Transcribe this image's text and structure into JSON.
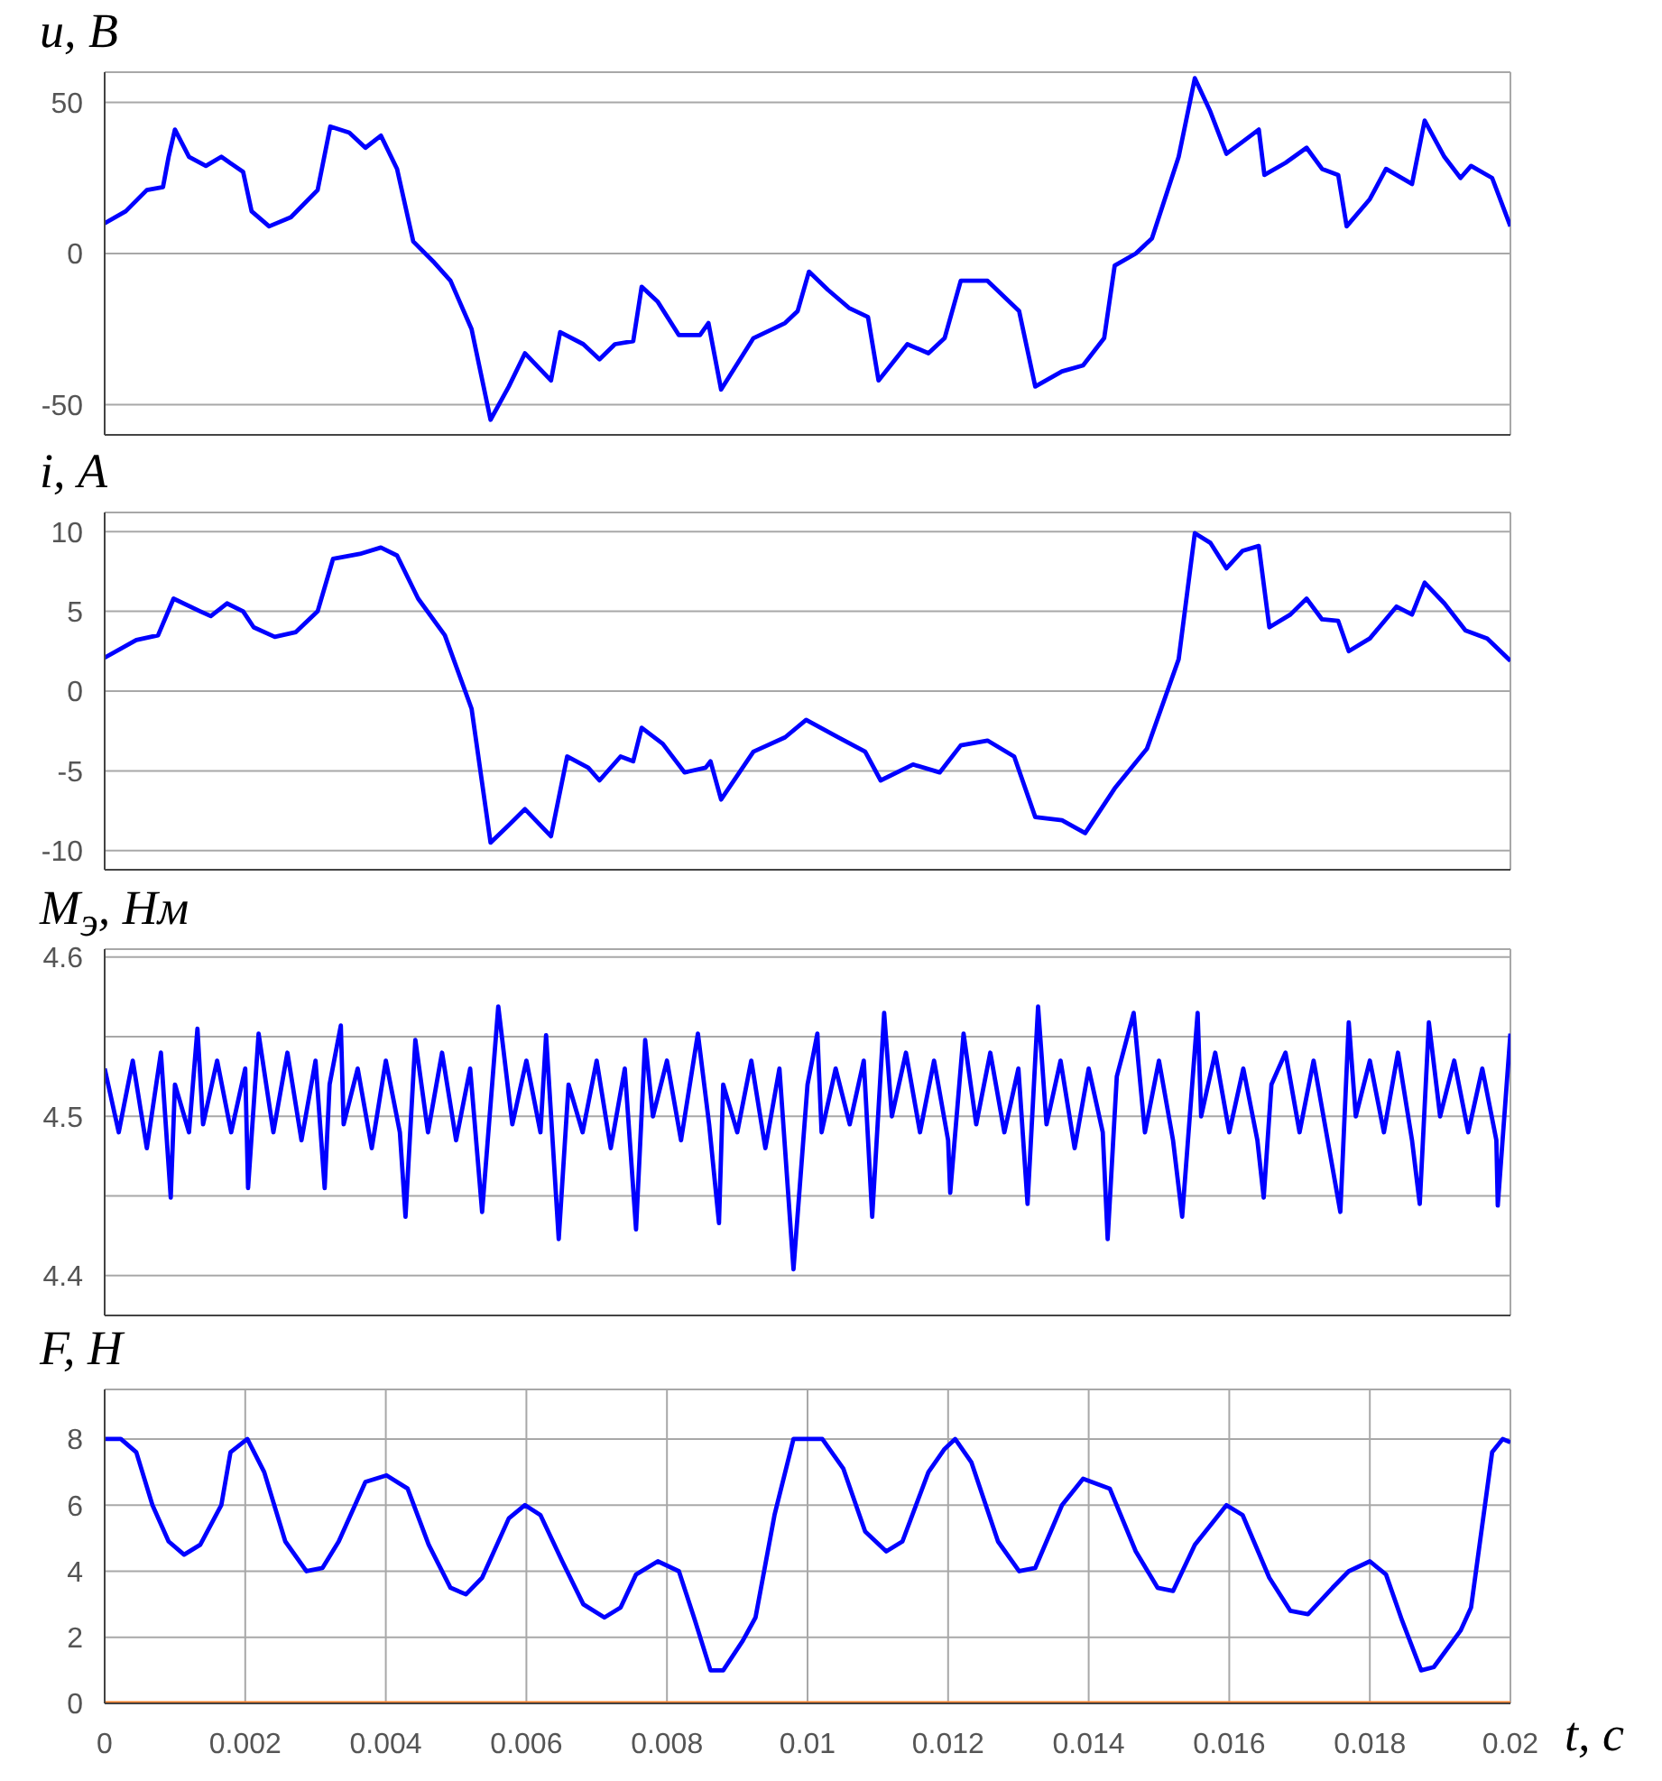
{
  "chart_data": [
    {
      "type": "line",
      "ylabel": "u, В",
      "xlim": [
        0,
        0.02
      ],
      "xticks": [
        0,
        0.002,
        0.004,
        0.006,
        0.008,
        0.01,
        0.012,
        0.014,
        0.016,
        0.018,
        0.02
      ],
      "ylim": [
        -60,
        60
      ],
      "yticks": [
        -50,
        0,
        50
      ],
      "grid": true,
      "tick_labels": "y",
      "series": [
        {
          "color": "#0000ff",
          "x": [
            0,
            0.0003,
            0.0006,
            0.00083,
            0.00091,
            0.001,
            0.0012,
            0.00144,
            0.00166,
            0.00197,
            0.00209,
            0.00234,
            0.00265,
            0.00303,
            0.00321,
            0.00348,
            0.00371,
            0.00393,
            0.00416,
            0.00439,
            0.00469,
            0.00492,
            0.00522,
            0.00549,
            0.00575,
            0.00598,
            0.00635,
            0.00648,
            0.00681,
            0.00704,
            0.00726,
            0.00752,
            0.00764,
            0.00787,
            0.00817,
            0.00847,
            0.00859,
            0.00877,
            0.00923,
            0.00968,
            0.00986,
            0.01002,
            0.01029,
            0.01059,
            0.01086,
            0.01101,
            0.01142,
            0.01172,
            0.01195,
            0.01218,
            0.01256,
            0.01301,
            0.01324,
            0.01362,
            0.01392,
            0.01422,
            0.01437,
            0.01467,
            0.0149,
            0.01528,
            0.01551,
            0.01573,
            0.01596,
            0.01619,
            0.01642,
            0.0165,
            0.0168,
            0.0171,
            0.01732,
            0.01755,
            0.01767,
            0.018,
            0.01823,
            0.0186,
            0.01878,
            0.01906,
            0.01929,
            0.01944,
            0.01974,
            0.02
          ],
          "values": [
            10,
            14,
            21,
            22,
            32,
            41,
            32,
            29,
            32,
            27,
            14,
            9,
            12,
            21,
            42,
            40,
            35,
            39,
            28,
            4,
            -3,
            -9,
            -25,
            -55,
            -44,
            -33,
            -42,
            -26,
            -30,
            -35,
            -30,
            -29,
            -11,
            -16,
            -27,
            -27,
            -23,
            -45,
            -28,
            -23,
            -19,
            -6,
            -12,
            -18,
            -21,
            -42,
            -30,
            -33,
            -28,
            -9,
            -9,
            -19,
            -44,
            -39,
            -37,
            -28,
            -4,
            0,
            5,
            32,
            58,
            47,
            33,
            37,
            41,
            26,
            30,
            35,
            28,
            26,
            9,
            18,
            28,
            23,
            44,
            32,
            25,
            29,
            25,
            9
          ]
        }
      ]
    },
    {
      "type": "line",
      "ylabel": "i, А",
      "xlim": [
        0,
        0.02
      ],
      "xticks": [
        0,
        0.002,
        0.004,
        0.006,
        0.008,
        0.01,
        0.012,
        0.014,
        0.016,
        0.018,
        0.02
      ],
      "ylim": [
        -11.2,
        11.2
      ],
      "yticks": [
        -10,
        -5,
        0,
        5,
        10
      ],
      "grid": true,
      "tick_labels": "y",
      "series": [
        {
          "color": "#0000ff",
          "x": [
            0,
            0.00045,
            0.00076,
            0.00098,
            0.00136,
            0.00151,
            0.00174,
            0.00197,
            0.00212,
            0.00242,
            0.00272,
            0.00303,
            0.00325,
            0.00363,
            0.00393,
            0.00416,
            0.00446,
            0.00484,
            0.00522,
            0.00549,
            0.00575,
            0.00598,
            0.00635,
            0.00658,
            0.00688,
            0.00704,
            0.00734,
            0.00752,
            0.00764,
            0.00794,
            0.00825,
            0.00855,
            0.00862,
            0.00877,
            0.00923,
            0.00968,
            0.00998,
            0.01044,
            0.01082,
            0.01104,
            0.0115,
            0.01188,
            0.01218,
            0.01256,
            0.01294,
            0.01324,
            0.01362,
            0.01395,
            0.01437,
            0.01483,
            0.01528,
            0.01551,
            0.01573,
            0.01596,
            0.01619,
            0.01642,
            0.01657,
            0.01687,
            0.0171,
            0.01732,
            0.01755,
            0.0177,
            0.018,
            0.01838,
            0.0186,
            0.01878,
            0.01906,
            0.01936,
            0.01967,
            0.02
          ],
          "values": [
            2.1,
            3.2,
            3.5,
            5.8,
            5.0,
            4.7,
            5.5,
            5.0,
            4.0,
            3.4,
            3.7,
            5.0,
            8.3,
            8.6,
            9.0,
            8.5,
            5.8,
            3.5,
            -1.1,
            -9.5,
            -8.4,
            -7.4,
            -9.1,
            -4.1,
            -4.8,
            -5.6,
            -4.1,
            -4.4,
            -2.3,
            -3.3,
            -5.1,
            -4.8,
            -4.4,
            -6.8,
            -3.8,
            -2.9,
            -1.8,
            -2.9,
            -3.8,
            -5.6,
            -4.6,
            -5.1,
            -3.4,
            -3.1,
            -4.1,
            -7.9,
            -8.1,
            -8.9,
            -6.1,
            -3.6,
            2.0,
            9.9,
            9.3,
            7.7,
            8.8,
            9.1,
            4.0,
            4.8,
            5.8,
            4.5,
            4.4,
            2.5,
            3.3,
            5.3,
            4.8,
            6.8,
            5.5,
            3.8,
            3.3,
            1.9
          ]
        }
      ]
    },
    {
      "type": "line",
      "ylabel": "M$_{э}$, Нм",
      "xlim": [
        0,
        0.02
      ],
      "xticks": [
        0,
        0.002,
        0.004,
        0.006,
        0.008,
        0.01,
        0.012,
        0.014,
        0.016,
        0.018,
        0.02
      ],
      "ylim": [
        4.375,
        4.605
      ],
      "yticks": [
        4.4,
        {
          "value": 4.45,
          "label": null
        },
        4.5,
        {
          "value": 4.55,
          "label": null
        },
        4.6
      ],
      "grid": true,
      "tick_labels": "y",
      "series": [
        {
          "color": "#0000ff",
          "x": [
            0,
            0.0002,
            0.0004,
            0.0006,
            0.0008,
            0.00094,
            0.001,
            0.0012,
            0.00132,
            0.0014,
            0.0016,
            0.0018,
            0.002,
            0.00204,
            0.00219,
            0.0024,
            0.0026,
            0.0028,
            0.003,
            0.00313,
            0.0032,
            0.00336,
            0.0034,
            0.0036,
            0.0038,
            0.004,
            0.0042,
            0.00428,
            0.00442,
            0.0046,
            0.0048,
            0.005,
            0.0052,
            0.00537,
            0.0056,
            0.0058,
            0.006,
            0.0062,
            0.00628,
            0.00646,
            0.0066,
            0.0068,
            0.007,
            0.0072,
            0.0074,
            0.00756,
            0.00769,
            0.0078,
            0.008,
            0.0082,
            0.00844,
            0.0086,
            0.00874,
            0.0088,
            0.009,
            0.0092,
            0.0094,
            0.0096,
            0.0098,
            0.01,
            0.01014,
            0.0102,
            0.0104,
            0.0106,
            0.0108,
            0.01092,
            0.01109,
            0.0112,
            0.0114,
            0.0116,
            0.0118,
            0.012,
            0.01203,
            0.01222,
            0.0124,
            0.0126,
            0.0128,
            0.013,
            0.01313,
            0.01328,
            0.0134,
            0.0136,
            0.0138,
            0.014,
            0.0142,
            0.01427,
            0.0144,
            0.01464,
            0.0148,
            0.015,
            0.0152,
            0.01533,
            0.01555,
            0.0156,
            0.0158,
            0.016,
            0.0162,
            0.0164,
            0.01649,
            0.0166,
            0.0168,
            0.017,
            0.0172,
            0.0174,
            0.01758,
            0.0177,
            0.0178,
            0.018,
            0.0182,
            0.0184,
            0.0186,
            0.01871,
            0.01884,
            0.019,
            0.0192,
            0.0194,
            0.0196,
            0.0198,
            0.01982,
            0.02
          ],
          "values": [
            4.53,
            4.49,
            4.535,
            4.48,
            4.54,
            4.449,
            4.52,
            4.49,
            4.555,
            4.495,
            4.535,
            4.49,
            4.53,
            4.455,
            4.552,
            4.49,
            4.54,
            4.485,
            4.535,
            4.455,
            4.52,
            4.557,
            4.495,
            4.53,
            4.48,
            4.535,
            4.49,
            4.437,
            4.548,
            4.49,
            4.54,
            4.485,
            4.53,
            4.44,
            4.569,
            4.495,
            4.535,
            4.49,
            4.551,
            4.423,
            4.52,
            4.49,
            4.535,
            4.48,
            4.53,
            4.429,
            4.548,
            4.5,
            4.535,
            4.485,
            4.552,
            4.495,
            4.433,
            4.52,
            4.49,
            4.535,
            4.48,
            4.53,
            4.404,
            4.52,
            4.552,
            4.49,
            4.53,
            4.495,
            4.535,
            4.437,
            4.565,
            4.5,
            4.54,
            4.49,
            4.535,
            4.485,
            4.452,
            4.552,
            4.495,
            4.54,
            4.49,
            4.53,
            4.445,
            4.569,
            4.495,
            4.535,
            4.48,
            4.53,
            4.49,
            4.423,
            4.525,
            4.565,
            4.49,
            4.535,
            4.485,
            4.437,
            4.565,
            4.5,
            4.54,
            4.49,
            4.53,
            4.485,
            4.449,
            4.52,
            4.54,
            4.49,
            4.535,
            4.485,
            4.44,
            4.559,
            4.5,
            4.535,
            4.49,
            4.54,
            4.485,
            4.445,
            4.559,
            4.5,
            4.535,
            4.49,
            4.53,
            4.485,
            4.444,
            4.552
          ]
        }
      ]
    },
    {
      "type": "line",
      "ylabel": "F, Н",
      "xlabel": "t, с",
      "xlim": [
        0,
        0.02
      ],
      "xticks": [
        0,
        0.002,
        0.004,
        0.006,
        0.008,
        0.01,
        0.012,
        0.014,
        0.016,
        0.018,
        0.02
      ],
      "ylim": [
        0,
        9.5
      ],
      "yticks": [
        0,
        2,
        4,
        6,
        8
      ],
      "grid": true,
      "series": [
        {
          "color": "#0000ff",
          "x": [
            0,
            0.00023,
            0.00045,
            0.00068,
            0.00091,
            0.00113,
            0.00136,
            0.00166,
            0.00179,
            0.00203,
            0.00227,
            0.00257,
            0.00287,
            0.0031,
            0.00333,
            0.00371,
            0.00401,
            0.00431,
            0.00461,
            0.00492,
            0.00514,
            0.00537,
            0.00575,
            0.00598,
            0.0062,
            0.00651,
            0.00681,
            0.00711,
            0.00734,
            0.00756,
            0.00787,
            0.00817,
            0.0084,
            0.00862,
            0.0088,
            0.00908,
            0.00926,
            0.00953,
            0.0098,
            0.01021,
            0.01051,
            0.01082,
            0.01112,
            0.01135,
            0.01172,
            0.01195,
            0.0121,
            0.01233,
            0.01271,
            0.01301,
            0.01324,
            0.01362,
            0.01392,
            0.0143,
            0.01467,
            0.01498,
            0.0152,
            0.01551,
            0.01596,
            0.01619,
            0.01657,
            0.01687,
            0.01712,
            0.01747,
            0.0177,
            0.018,
            0.01823,
            0.01846,
            0.01873,
            0.01891,
            0.01929,
            0.01944,
            0.01974,
            0.01989,
            0.02
          ],
          "values": [
            8.0,
            8.0,
            7.6,
            6.0,
            4.9,
            4.5,
            4.8,
            6.0,
            7.6,
            8.0,
            7.0,
            4.9,
            4.0,
            4.1,
            4.9,
            6.7,
            6.9,
            6.5,
            4.8,
            3.5,
            3.3,
            3.8,
            5.6,
            6.0,
            5.7,
            4.3,
            3.0,
            2.6,
            2.9,
            3.9,
            4.3,
            4.0,
            2.5,
            1.0,
            1.0,
            1.9,
            2.6,
            5.7,
            8.0,
            8.0,
            7.1,
            5.2,
            4.6,
            4.9,
            7.0,
            7.7,
            8.0,
            7.3,
            4.9,
            4.0,
            4.1,
            6.0,
            6.8,
            6.5,
            4.6,
            3.5,
            3.4,
            4.8,
            6.0,
            5.7,
            3.8,
            2.8,
            2.7,
            3.5,
            4.0,
            4.3,
            3.9,
            2.5,
            1.0,
            1.1,
            2.2,
            2.9,
            7.6,
            8.0,
            7.9
          ]
        },
        {
          "color": "#ff7f27",
          "x": [
            0,
            0.02
          ],
          "values": [
            0,
            0
          ]
        }
      ]
    }
  ]
}
